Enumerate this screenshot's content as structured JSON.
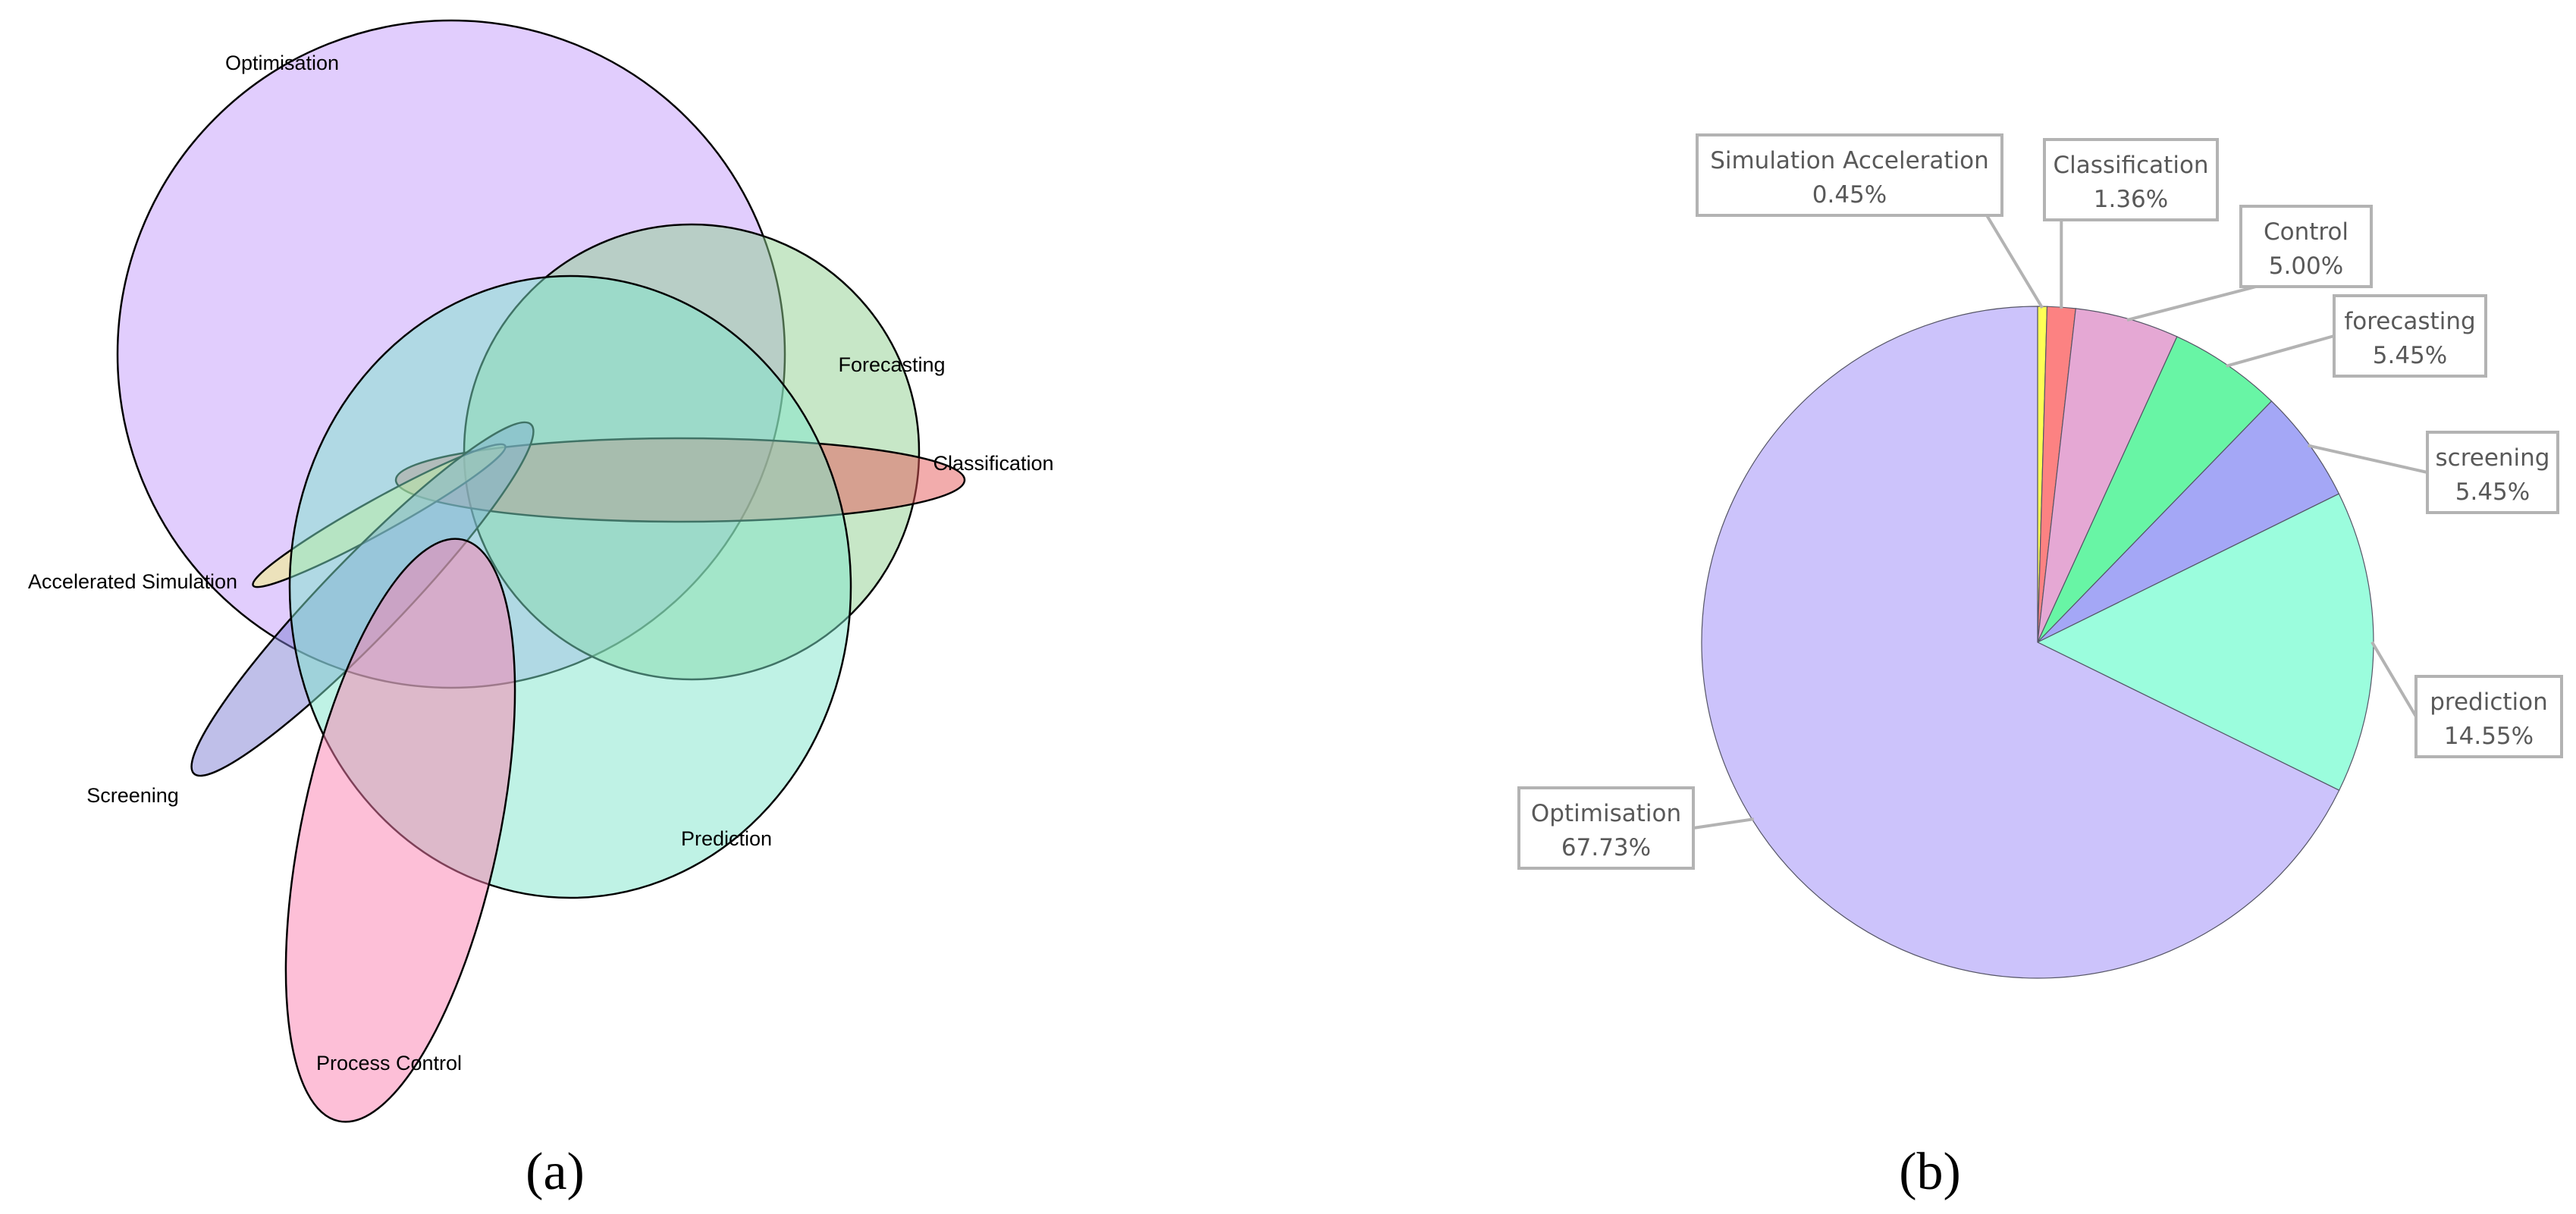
{
  "figure": {
    "panel_a_label": "(a)",
    "panel_b_label": "(b)"
  },
  "chart_data": [
    {
      "type": "venn",
      "sets": [
        {
          "name": "Optimisation",
          "color": "#c49cfc"
        },
        {
          "name": "Forecasting",
          "color": "#8fd08f"
        },
        {
          "name": "Classification",
          "color": "#e65a5a"
        },
        {
          "name": "Accelerated Simulation",
          "color": "#f7f77a"
        },
        {
          "name": "Screening",
          "color": "#7f7fd4"
        },
        {
          "name": "Prediction",
          "color": "#7fe6cc"
        },
        {
          "name": "Process Control",
          "color": "#fc7fb0"
        }
      ]
    },
    {
      "type": "pie",
      "slices": [
        {
          "label": "Simulation Acceleration",
          "value": 0.45,
          "pct": "0.45%",
          "color": "#ffff55"
        },
        {
          "label": "Classification",
          "value": 1.36,
          "pct": "1.36%",
          "color": "#fc8282"
        },
        {
          "label": "Control",
          "value": 5.0,
          "pct": "5.00%",
          "color": "#e5a8d4"
        },
        {
          "label": "forecasting",
          "value": 5.45,
          "pct": "5.45%",
          "color": "#68f5a5"
        },
        {
          "label": "screening",
          "value": 5.45,
          "pct": "5.45%",
          "color": "#a4a7f6"
        },
        {
          "label": "prediction",
          "value": 14.55,
          "pct": "14.55%",
          "color": "#9bfddd"
        },
        {
          "label": "Optimisation",
          "value": 67.73,
          "pct": "67.73%",
          "color": "#ccc3fb"
        }
      ]
    }
  ]
}
